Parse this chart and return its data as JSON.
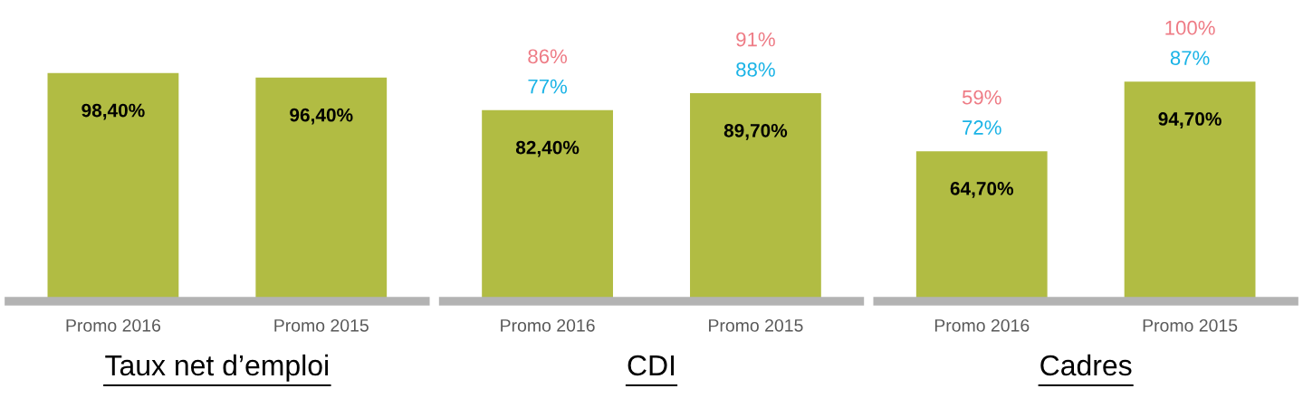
{
  "chart_data": [
    {
      "type": "bar",
      "title": "Taux net d’emploi",
      "categories": [
        "Promo 2016",
        "Promo 2015"
      ],
      "values": [
        98.4,
        96.4
      ],
      "value_labels": [
        "98,40%",
        "96,40%"
      ],
      "color": "#b1bc43",
      "grid": false,
      "legend": false
    },
    {
      "type": "bar",
      "title": "CDI",
      "categories": [
        "Promo 2016",
        "Promo 2015"
      ],
      "values": [
        82.4,
        89.7
      ],
      "value_labels": [
        "82,40%",
        "89,70%"
      ],
      "color": "#b1bc43",
      "grid": false,
      "legend": false,
      "annotations": [
        "86%",
        "77%",
        "91%",
        "88%"
      ]
    },
    {
      "type": "bar",
      "title": "Cadres",
      "categories": [
        "Promo 2016",
        "Promo 2015"
      ],
      "values": [
        64.7,
        94.7
      ],
      "value_labels": [
        "64,70%",
        "94,70%"
      ],
      "color": "#b1bc43",
      "grid": false,
      "legend": false,
      "annotations": [
        "59%",
        "72%",
        "100%",
        "87%"
      ]
    }
  ]
}
